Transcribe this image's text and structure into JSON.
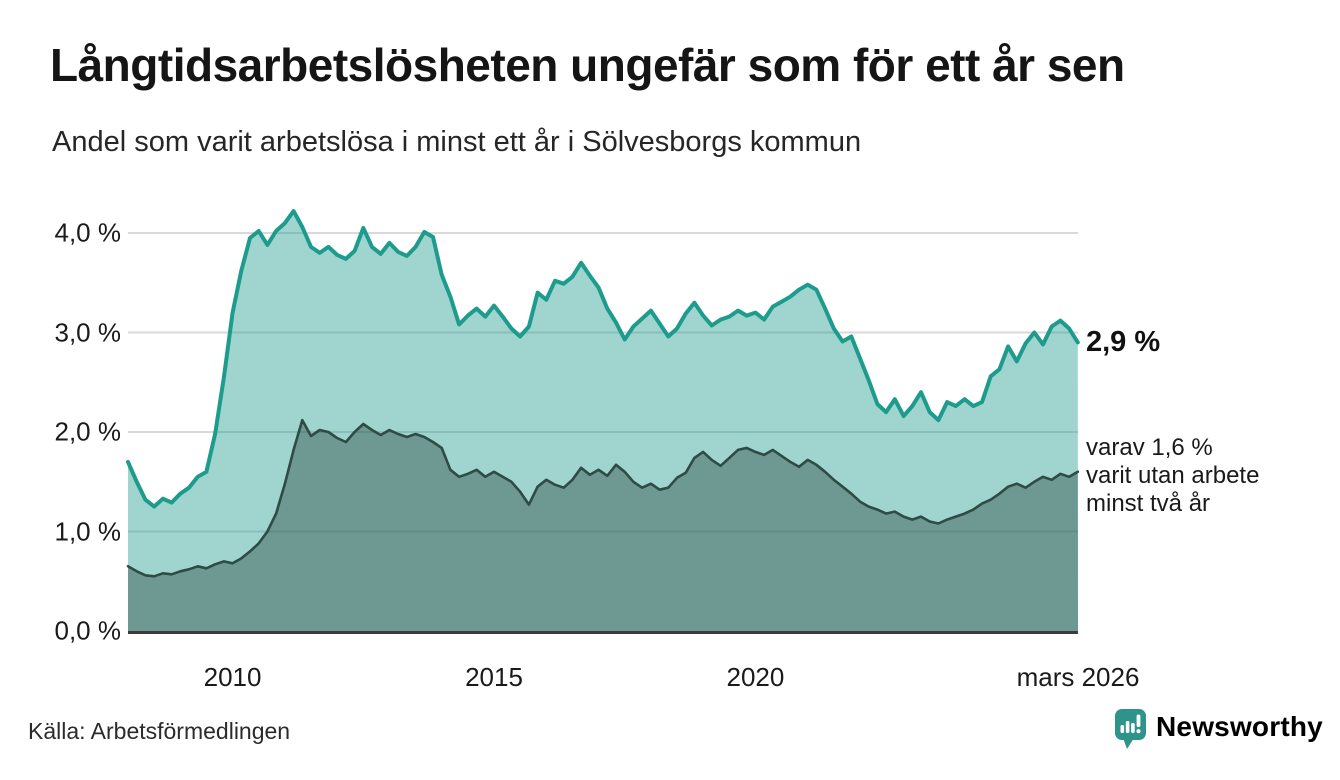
{
  "header": {
    "title": "Långtidsarbetslösheten ungefär som för ett år sen",
    "subtitle": "Andel som varit arbetslösa i minst ett år i Sölvesborgs kommun"
  },
  "footer": {
    "source": "Källa: Arbetsförmedlingen",
    "brand": "Newsworthy",
    "brand_icon": "bar-chart-speech-bubble-icon",
    "brand_color": "#2e938a"
  },
  "annotations": {
    "end_value": "2,9 %",
    "note_lines": [
      "varav 1,6 %",
      "varit utan arbete",
      "minst två år"
    ]
  },
  "colors": {
    "series1_line": "#1d9b8d",
    "series1_fill_opacity": 0.42,
    "series2_line": "#2e4b45",
    "series2_fill_opacity": 0.44,
    "gridline": "#d9d9d9",
    "axis_line": "#3c3c3c",
    "text": "#1a1a1a"
  },
  "chart_data": {
    "type": "area",
    "title": "Långtidsarbetslösheten ungefär som för ett år sen",
    "subtitle": "Andel som varit arbetslösa i minst ett år i Sölvesborgs kommun",
    "xlabel": "",
    "ylabel": "",
    "x_start": 2008.0,
    "x_step_years": 0.16667,
    "x_end": 2026.17,
    "ylim": [
      0,
      4.43
    ],
    "grid": true,
    "yticks": [
      {
        "value": 4,
        "label": "4,0 %"
      },
      {
        "value": 3,
        "label": "3,0 %"
      },
      {
        "value": 2,
        "label": "2,0 %"
      },
      {
        "value": 1,
        "label": "1,0 %"
      },
      {
        "value": 0,
        "label": "0,0 %"
      }
    ],
    "xticks": [
      {
        "year": 2010,
        "label": "2010"
      },
      {
        "year": 2015,
        "label": "2015"
      },
      {
        "year": 2020,
        "label": "2020"
      },
      {
        "year": 2026.17,
        "label": "mars 2026"
      }
    ],
    "series": [
      {
        "name": "arbetslösa minst ett år",
        "end_label": "2,9 %",
        "end_value": 2.9,
        "values": [
          1.7,
          1.5,
          1.32,
          1.25,
          1.33,
          1.29,
          1.38,
          1.44,
          1.55,
          1.6,
          1.98,
          2.55,
          3.2,
          3.62,
          3.95,
          4.02,
          3.88,
          4.02,
          4.1,
          4.22,
          4.06,
          3.86,
          3.8,
          3.86,
          3.78,
          3.74,
          3.82,
          4.05,
          3.86,
          3.79,
          3.9,
          3.81,
          3.77,
          3.86,
          4.01,
          3.96,
          3.58,
          3.36,
          3.08,
          3.17,
          3.24,
          3.16,
          3.27,
          3.16,
          3.04,
          2.96,
          3.06,
          3.4,
          3.33,
          3.52,
          3.49,
          3.56,
          3.7,
          3.57,
          3.45,
          3.24,
          3.1,
          2.93,
          3.06,
          3.14,
          3.22,
          3.09,
          2.96,
          3.04,
          3.19,
          3.3,
          3.17,
          3.07,
          3.13,
          3.16,
          3.22,
          3.17,
          3.2,
          3.13,
          3.26,
          3.31,
          3.36,
          3.43,
          3.48,
          3.43,
          3.24,
          3.04,
          2.91,
          2.96,
          2.74,
          2.52,
          2.28,
          2.2,
          2.33,
          2.16,
          2.26,
          2.4,
          2.2,
          2.12,
          2.3,
          2.26,
          2.33,
          2.26,
          2.3,
          2.56,
          2.63,
          2.86,
          2.71,
          2.89,
          3.0,
          2.88,
          3.06,
          3.12,
          3.04,
          2.9
        ]
      },
      {
        "name": "varit utan arbete minst två år",
        "end_label": "varav 1,6 %",
        "end_value": 1.6,
        "values": [
          0.65,
          0.6,
          0.56,
          0.55,
          0.58,
          0.57,
          0.6,
          0.62,
          0.65,
          0.63,
          0.67,
          0.7,
          0.68,
          0.73,
          0.8,
          0.88,
          1.0,
          1.18,
          1.48,
          1.82,
          2.12,
          1.96,
          2.02,
          2.0,
          1.94,
          1.9,
          2.0,
          2.08,
          2.02,
          1.97,
          2.02,
          1.98,
          1.95,
          1.98,
          1.95,
          1.9,
          1.84,
          1.62,
          1.55,
          1.58,
          1.62,
          1.55,
          1.6,
          1.55,
          1.5,
          1.4,
          1.27,
          1.45,
          1.52,
          1.47,
          1.44,
          1.52,
          1.64,
          1.57,
          1.62,
          1.56,
          1.67,
          1.6,
          1.5,
          1.44,
          1.48,
          1.42,
          1.44,
          1.54,
          1.59,
          1.74,
          1.8,
          1.72,
          1.66,
          1.74,
          1.82,
          1.84,
          1.8,
          1.77,
          1.82,
          1.76,
          1.7,
          1.65,
          1.72,
          1.67,
          1.6,
          1.52,
          1.45,
          1.38,
          1.3,
          1.25,
          1.22,
          1.18,
          1.2,
          1.15,
          1.12,
          1.15,
          1.1,
          1.08,
          1.12,
          1.15,
          1.18,
          1.22,
          1.28,
          1.32,
          1.38,
          1.45,
          1.48,
          1.44,
          1.5,
          1.55,
          1.52,
          1.58,
          1.55,
          1.6
        ]
      }
    ],
    "legend_position": "none"
  }
}
